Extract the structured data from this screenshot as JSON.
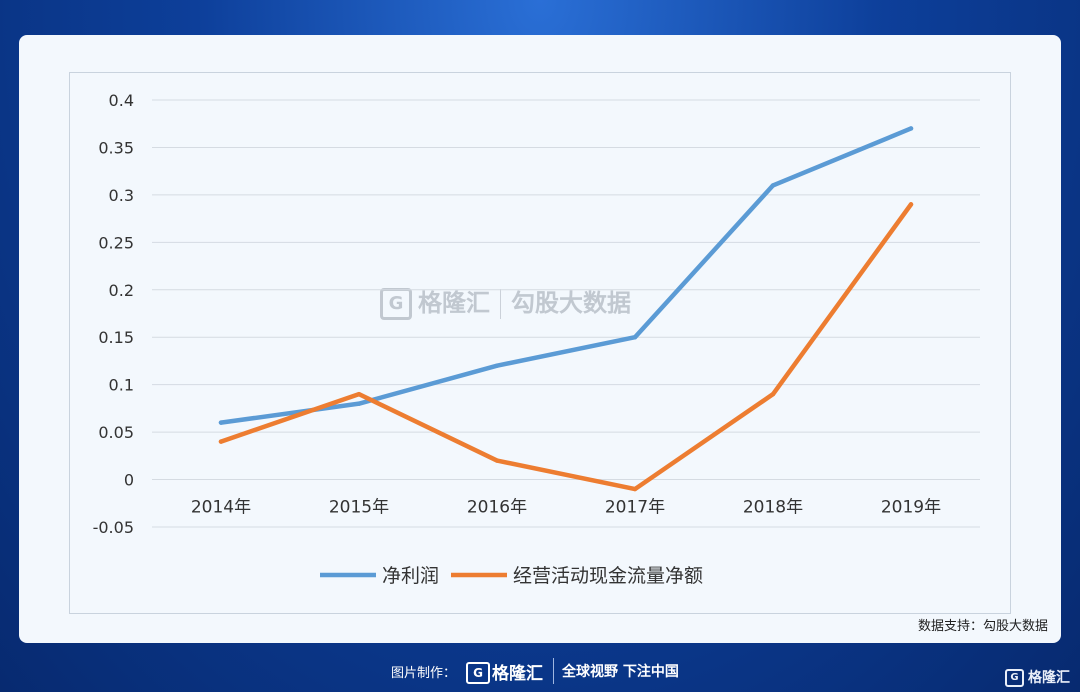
{
  "chart_data": {
    "type": "line",
    "title": "",
    "xlabel": "",
    "ylabel": "",
    "categories": [
      "2014年",
      "2015年",
      "2016年",
      "2017年",
      "2018年",
      "2019年"
    ],
    "ylim": [
      -0.05,
      0.4
    ],
    "yticks": [
      0.4,
      0.35,
      0.3,
      0.25,
      0.2,
      0.15,
      0.1,
      0.05,
      0,
      -0.05
    ],
    "ytick_labels": [
      "0.4",
      "0.35",
      "0.3",
      "0.25",
      "0.2",
      "0.15",
      "0.1",
      "0.05",
      "0",
      "-0.05"
    ],
    "grid": true,
    "legend_position": "bottom",
    "series": [
      {
        "name": "净利润",
        "color": "#5b9bd5",
        "values": [
          0.06,
          0.08,
          0.12,
          0.15,
          0.31,
          0.37
        ]
      },
      {
        "name": "经营活动现金流量净额",
        "color": "#ed7d31",
        "values": [
          0.04,
          0.09,
          0.02,
          -0.01,
          0.09,
          0.29
        ]
      }
    ]
  },
  "watermark": {
    "g": "G",
    "brand": "格隆汇",
    "text": "勾股大数据"
  },
  "source_note": "数据支持：勾股大数据",
  "footer": {
    "label": "图片制作：",
    "logo": "G",
    "brand": "格隆汇",
    "slogan": "全球视野 下注中国"
  },
  "corner_logo": {
    "g": "G",
    "brand": "格隆汇"
  }
}
